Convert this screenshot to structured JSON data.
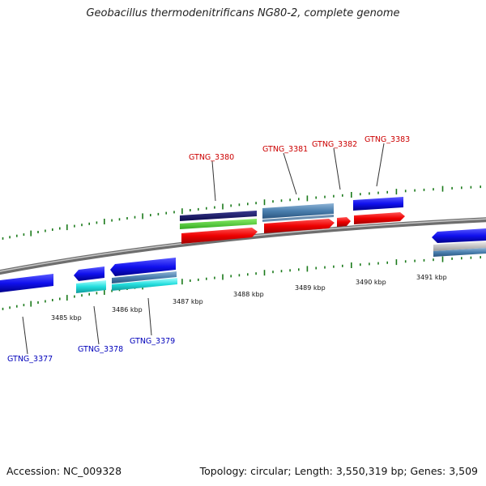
{
  "title": "Geobacillus thermodenitrificans NG80-2, complete genome",
  "footer": {
    "accession": "Accession: NC_009328",
    "topology": "Topology: circular; Length: 3,550,319 bp; Genes: 3,509"
  },
  "colors": {
    "forward_label": "#cc0000",
    "reverse_label": "#0000bb",
    "tick": "#1a7a1a",
    "backbone": "#8a8a8a"
  },
  "axis": {
    "tick_labels": [
      "3485 kbp",
      "3486 kbp",
      "3487 kbp",
      "3488 kbp",
      "3489 kbp",
      "3490 kbp",
      "3491 kbp"
    ]
  },
  "genes": {
    "forward": [
      {
        "label": "GTNG_3380"
      },
      {
        "label": "GTNG_3381"
      },
      {
        "label": "GTNG_3382"
      },
      {
        "label": "GTNG_3383"
      }
    ],
    "reverse": [
      {
        "label": "GTNG_3377"
      },
      {
        "label": "GTNG_3378"
      },
      {
        "label": "GTNG_3379"
      }
    ]
  }
}
